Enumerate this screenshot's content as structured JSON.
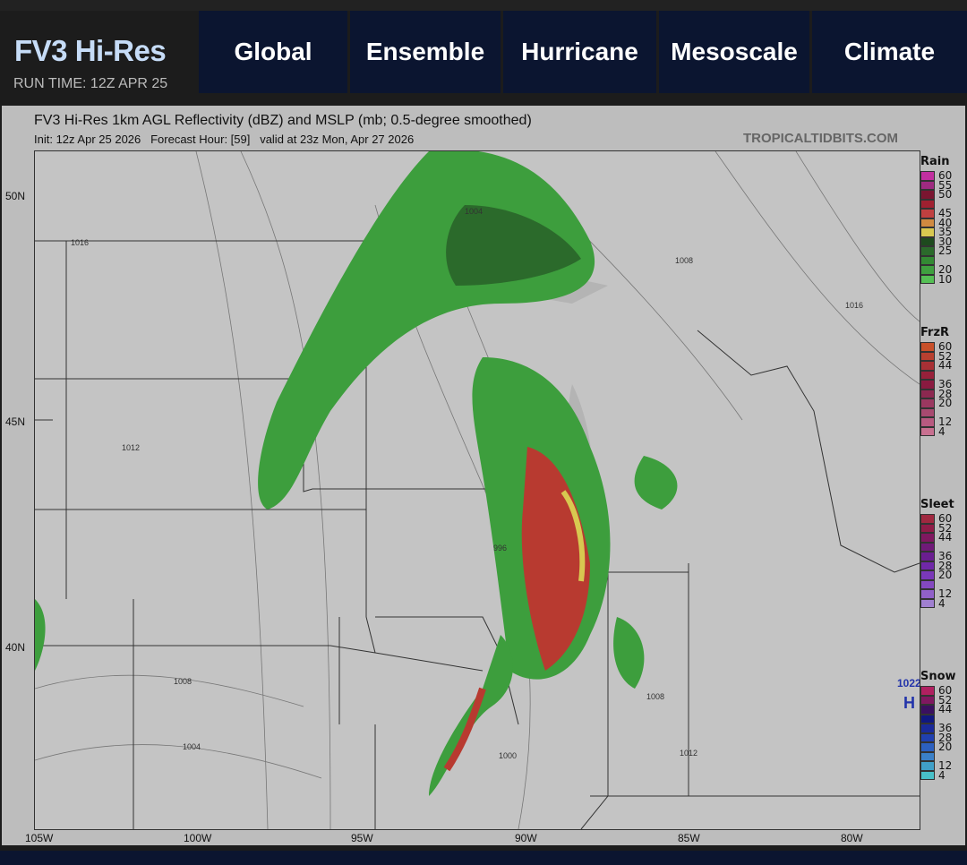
{
  "header": {
    "model": "FV3 Hi-Res",
    "run_time": "RUN TIME: 12Z APR 25",
    "nav": [
      "Global",
      "Ensemble",
      "Hurricane",
      "Mesoscale",
      "Climate"
    ]
  },
  "map": {
    "title": "FV3 Hi-Res 1km AGL Reflectivity (dBZ) and MSLP (mb; 0.5-degree smoothed)",
    "subtitle": "Init: 12z Apr 25 2026   Forecast Hour: [59]   valid at 23z Mon, Apr 27 2026",
    "site": "TROPICALTIDBITS.COM",
    "lat_labels": [
      "50N",
      "45N",
      "40N"
    ],
    "lon_labels": [
      "105W",
      "100W",
      "95W",
      "90W",
      "85W",
      "80W"
    ],
    "isobar_labels": [
      "1016",
      "1004",
      "1008",
      "1016",
      "1012",
      "1008",
      "1004",
      "996",
      "1000",
      "1008",
      "1012",
      "1022"
    ],
    "high_label": "H"
  },
  "legend": [
    {
      "title": "Rain",
      "labels": [
        "60",
        "55",
        "50",
        "45",
        "40",
        "35",
        "30",
        "25",
        "20",
        "10"
      ],
      "colors": [
        "#c22fa0",
        "#9e2a80",
        "#7a1530",
        "#a02030",
        "#c04040",
        "#d08a40",
        "#d8c850",
        "#1e4a1e",
        "#2b6a2b",
        "#338a33",
        "#3fa03f",
        "#55c055"
      ]
    },
    {
      "title": "FrzR",
      "labels": [
        "60",
        "52",
        "44",
        "36",
        "28",
        "20",
        "12",
        "4"
      ],
      "colors": [
        "#c8502a",
        "#b84030",
        "#a83035",
        "#98203a",
        "#8a1a40",
        "#8c2850",
        "#9a3860",
        "#a84a70",
        "#b85a80",
        "#c87090"
      ]
    },
    {
      "title": "Sleet",
      "labels": [
        "60",
        "52",
        "44",
        "36",
        "28",
        "20",
        "12",
        "4"
      ],
      "colors": [
        "#a02840",
        "#901c48",
        "#801860",
        "#701a78",
        "#6a1e90",
        "#7028a8",
        "#7a38b8",
        "#8448c0",
        "#9060c8",
        "#a080d0"
      ]
    },
    {
      "title": "Snow",
      "labels": [
        "60",
        "52",
        "44",
        "36",
        "28",
        "20",
        "12",
        "4"
      ],
      "colors": [
        "#b02060",
        "#801860",
        "#3a1060",
        "#101880",
        "#1a2a9a",
        "#2040b0",
        "#2c60c0",
        "#3a80c8",
        "#40a0c8",
        "#48c0c8"
      ]
    }
  ]
}
